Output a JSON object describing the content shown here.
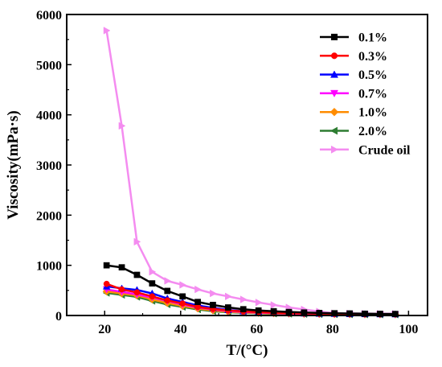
{
  "chart_data": {
    "type": "line",
    "xlabel": "T/(°C)",
    "ylabel": "Viscosity(mPa·s)",
    "xlim": [
      10,
      105
    ],
    "ylim": [
      0,
      6000
    ],
    "xticks": [
      20,
      40,
      60,
      80,
      100
    ],
    "yticks": [
      0,
      1000,
      2000,
      3000,
      4000,
      5000,
      6000
    ],
    "grid": false,
    "legend_position": "top-right",
    "x": [
      20.5,
      24.5,
      28.5,
      32.5,
      36.5,
      40.5,
      44.5,
      48.5,
      52.5,
      56.5,
      60.5,
      64.5,
      68.5,
      72.5,
      76.5,
      80.5,
      84.5,
      88.5,
      92.5,
      96.5
    ],
    "series": [
      {
        "name": "0.1%",
        "color": "#000000",
        "marker": "square",
        "values": [
          1000,
          960,
          810,
          640,
          490,
          380,
          270,
          210,
          160,
          125,
          100,
          85,
          70,
          60,
          50,
          45,
          40,
          35,
          32,
          30
        ]
      },
      {
        "name": "0.3%",
        "color": "#ff0000",
        "marker": "circle",
        "values": [
          630,
          520,
          460,
          380,
          300,
          240,
          170,
          130,
          100,
          80,
          65,
          55,
          47,
          40,
          35,
          32,
          30,
          28,
          26,
          25
        ]
      },
      {
        "name": "0.5%",
        "color": "#0000ff",
        "marker": "triangle-up",
        "values": [
          580,
          540,
          510,
          440,
          340,
          270,
          200,
          150,
          110,
          85,
          70,
          58,
          48,
          42,
          37,
          34,
          31,
          29,
          27,
          26
        ]
      },
      {
        "name": "0.7%",
        "color": "#ff00ff",
        "marker": "triangle-down",
        "values": [
          520,
          470,
          420,
          360,
          290,
          220,
          160,
          120,
          90,
          70,
          58,
          48,
          40,
          35,
          31,
          28,
          26,
          24,
          23,
          22
        ]
      },
      {
        "name": "1.0%",
        "color": "#ff8c00",
        "marker": "diamond",
        "values": [
          480,
          440,
          400,
          320,
          250,
          190,
          140,
          100,
          75,
          60,
          50,
          42,
          36,
          31,
          28,
          26,
          24,
          22,
          21,
          20
        ]
      },
      {
        "name": "2.0%",
        "color": "#2e7d32",
        "marker": "triangle-left",
        "values": [
          450,
          410,
          370,
          290,
          220,
          170,
          120,
          85,
          65,
          52,
          43,
          36,
          31,
          27,
          24,
          22,
          20,
          19,
          18,
          17
        ]
      },
      {
        "name": "Crude oil",
        "color": "#f48cf0",
        "marker": "triangle-right",
        "values": [
          5680,
          3780,
          1470,
          870,
          690,
          610,
          520,
          440,
          380,
          320,
          260,
          210,
          160,
          120,
          80,
          45,
          40,
          38,
          36,
          35
        ]
      }
    ]
  }
}
